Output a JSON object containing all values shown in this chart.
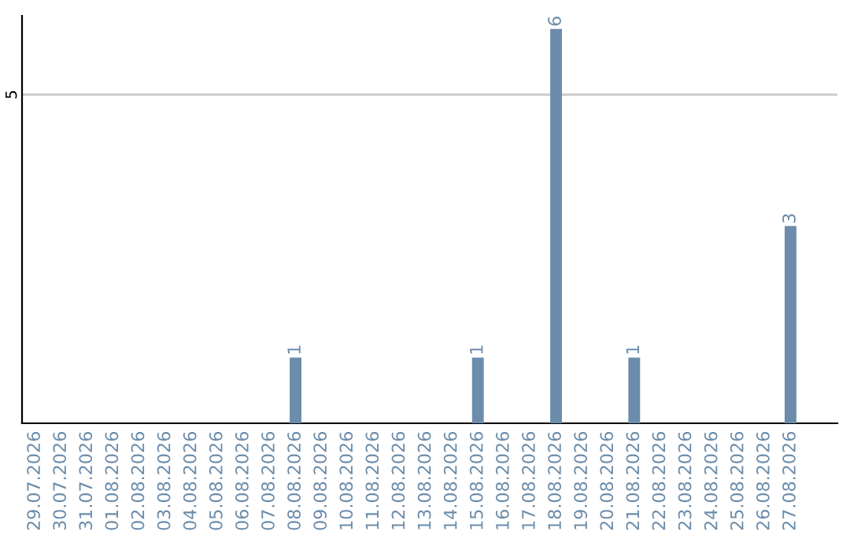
{
  "chart_data": {
    "type": "bar",
    "categories": [
      "29.07.2026",
      "30.07.2026",
      "31.07.2026",
      "01.08.2026",
      "02.08.2026",
      "03.08.2026",
      "04.08.2026",
      "05.08.2026",
      "06.08.2026",
      "07.08.2026",
      "08.08.2026",
      "09.08.2026",
      "10.08.2026",
      "11.08.2026",
      "12.08.2026",
      "13.08.2026",
      "14.08.2026",
      "15.08.2026",
      "16.08.2026",
      "17.08.2026",
      "18.08.2026",
      "19.08.2026",
      "20.08.2026",
      "21.08.2026",
      "22.08.2026",
      "23.08.2026",
      "24.08.2026",
      "25.08.2026",
      "26.08.2026",
      "27.08.2026"
    ],
    "values": [
      0,
      0,
      0,
      0,
      0,
      0,
      0,
      0,
      0,
      0,
      1,
      0,
      0,
      0,
      0,
      0,
      0,
      1,
      0,
      0,
      6,
      0,
      0,
      1,
      0,
      0,
      0,
      0,
      0,
      3
    ],
    "value_labels": [
      null,
      null,
      null,
      null,
      null,
      null,
      null,
      null,
      null,
      null,
      "1",
      null,
      null,
      null,
      null,
      null,
      null,
      "1",
      null,
      null,
      "6",
      null,
      null,
      "1",
      null,
      null,
      null,
      null,
      null,
      "3"
    ],
    "color": "#6b8caa",
    "ylim": [
      0,
      6.2
    ],
    "yticks": [
      5
    ],
    "grid": "y"
  }
}
